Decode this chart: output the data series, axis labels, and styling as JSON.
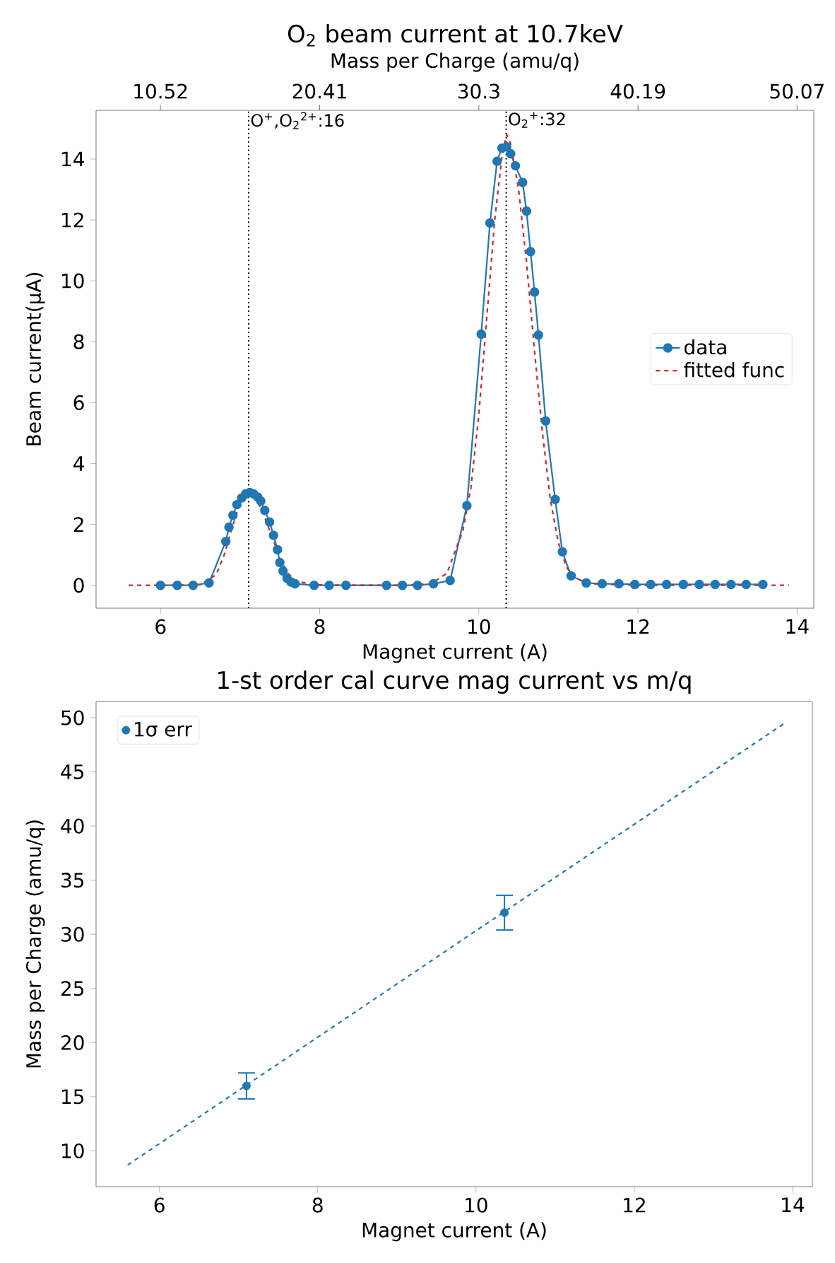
{
  "chart_data": [
    {
      "type": "line",
      "title": "O$_{2}$ beam current at 10.7keV",
      "xlabel": "Magnet current (A)",
      "ylabel": "Beam current(μA)",
      "x2label": "Mass per Charge (amu/q)",
      "xlim": [
        5.19,
        14.21
      ],
      "xticks": [
        6,
        8,
        10,
        12,
        14
      ],
      "ylim": [
        -0.75,
        15.6
      ],
      "yticks": [
        0,
        2,
        4,
        6,
        8,
        10,
        12,
        14
      ],
      "x2lim": [
        6.52,
        51.11
      ],
      "x2ticks": [
        10.52,
        20.41,
        30.3,
        40.19,
        50.07
      ],
      "legend": "right",
      "series": [
        {
          "name": "data",
          "color": "#1f77b4",
          "marker": "circle",
          "line_style": "solid",
          "x": [
            6.0,
            6.21,
            6.41,
            6.61,
            6.82,
            6.86,
            6.91,
            6.96,
            7.02,
            7.07,
            7.12,
            7.17,
            7.22,
            7.26,
            7.31,
            7.37,
            7.42,
            7.47,
            7.5,
            7.54,
            7.59,
            7.64,
            7.69,
            7.93,
            8.12,
            8.33,
            8.84,
            9.04,
            9.23,
            9.43,
            9.64,
            9.85,
            10.03,
            10.14,
            10.23,
            10.29,
            10.35,
            10.4,
            10.46,
            10.55,
            10.6,
            10.65,
            10.7,
            10.75,
            10.84,
            10.96,
            11.05,
            11.16,
            11.35,
            11.55,
            11.76,
            11.96,
            12.16,
            12.36,
            12.57,
            12.77,
            12.97,
            13.17,
            13.36,
            13.57
          ],
          "values": [
            0,
            0,
            0,
            0.08,
            1.44,
            1.91,
            2.3,
            2.65,
            2.87,
            3.0,
            3.05,
            3.0,
            2.9,
            2.77,
            2.46,
            2.08,
            1.64,
            1.17,
            0.75,
            0.47,
            0.23,
            0.11,
            0.05,
            0,
            0,
            0,
            0,
            0,
            0,
            0.05,
            0.16,
            2.62,
            8.25,
            11.9,
            13.93,
            14.36,
            14.4,
            14.17,
            13.78,
            13.23,
            12.29,
            10.96,
            9.63,
            8.22,
            5.4,
            2.82,
            1.1,
            0.31,
            0.08,
            0.05,
            0.05,
            0.03,
            0.03,
            0.03,
            0.03,
            0.03,
            0.03,
            0.03,
            0.03,
            0.03
          ]
        },
        {
          "name": "fitted func",
          "color": "#d62728",
          "marker": "none",
          "line_style": "dashed",
          "x": [
            5.6,
            6.0,
            6.5,
            6.7,
            6.8,
            6.9,
            7.0,
            7.1,
            7.2,
            7.3,
            7.4,
            7.5,
            7.6,
            7.7,
            7.9,
            8.5,
            9.0,
            9.4,
            9.6,
            9.8,
            9.9,
            10.0,
            10.1,
            10.2,
            10.3,
            10.35,
            10.4,
            10.5,
            10.6,
            10.7,
            10.8,
            10.9,
            11.0,
            11.1,
            11.2,
            11.4,
            12.0,
            13.0,
            13.9
          ],
          "values": [
            0,
            0,
            0.02,
            0.35,
            1.0,
            1.9,
            2.7,
            3.05,
            2.85,
            2.3,
            1.6,
            0.9,
            0.4,
            0.15,
            0.02,
            0,
            0,
            0.05,
            0.4,
            1.8,
            3.2,
            5.6,
            8.8,
            12.0,
            14.3,
            14.8,
            14.5,
            13.0,
            10.6,
            7.7,
            5.0,
            2.8,
            1.4,
            0.6,
            0.25,
            0.05,
            0,
            0,
            0
          ]
        }
      ],
      "ref_lines": [
        {
          "axis": "x2",
          "value": 16,
          "label": "O$^{+}$,O$_{2}$$^{2+}$:16",
          "color": "#000000",
          "line_style": "dotted"
        },
        {
          "axis": "x2",
          "value": 32,
          "label": "O$_{2}$$^{+}$:32",
          "color": "#000000",
          "line_style": "dotted"
        }
      ]
    },
    {
      "type": "scatter",
      "title": "1-st order cal curve mag current vs m/q",
      "xlabel": "Magnet current (A)",
      "ylabel": "Mass per Charge (amu/q)",
      "xlim": [
        5.2,
        14.25
      ],
      "xticks": [
        6,
        8,
        10,
        12,
        14
      ],
      "ylim": [
        6.7,
        51.5
      ],
      "yticks": [
        10,
        15,
        20,
        25,
        30,
        35,
        40,
        45,
        50
      ],
      "legend": "top left",
      "series": [
        {
          "type": "line",
          "color": "#1f77b4",
          "marker": "none",
          "line_style": "dashed",
          "x": [
            5.6,
            13.9
          ],
          "values": [
            8.7,
            49.5
          ]
        },
        {
          "name": "1σ err",
          "color": "#1f77b4",
          "marker": "circle",
          "x": [
            7.1,
            10.36
          ],
          "values": [
            16,
            32
          ],
          "errors": [
            1.2,
            1.6
          ]
        }
      ]
    }
  ]
}
